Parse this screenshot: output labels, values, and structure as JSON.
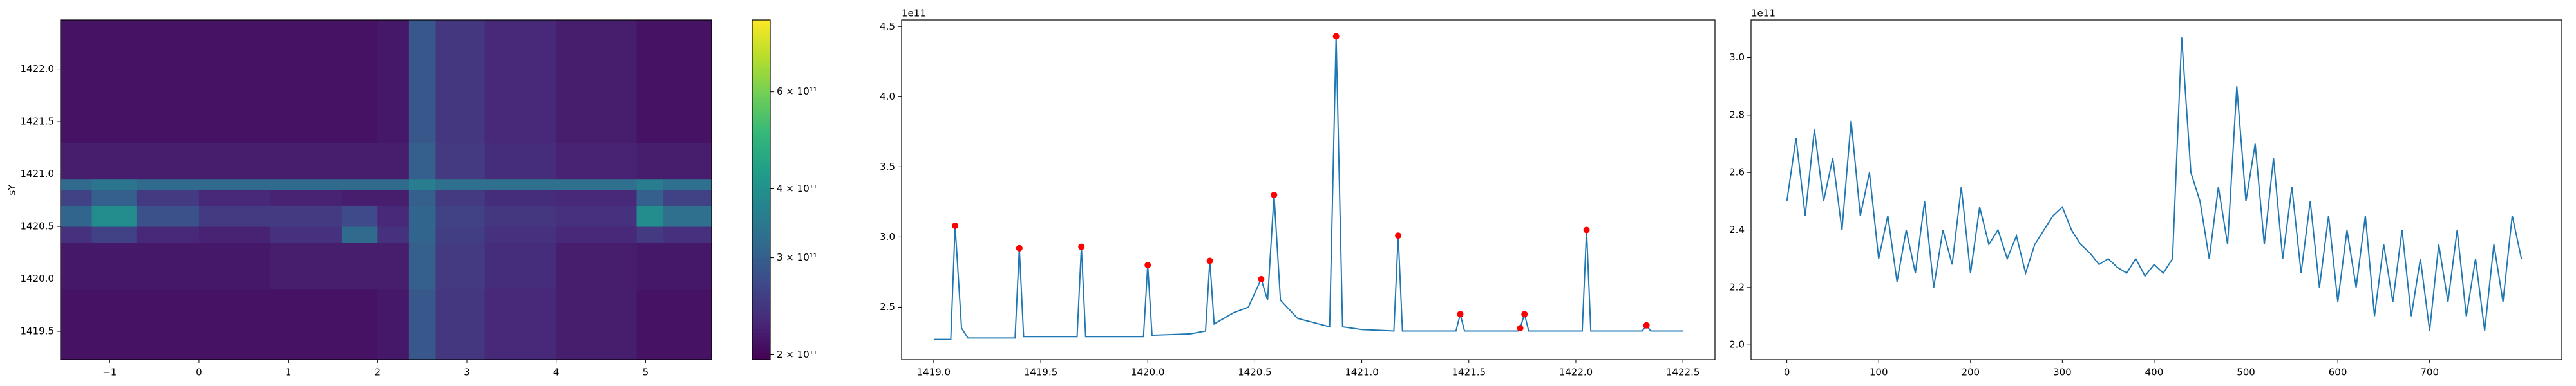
{
  "chart_data": [
    {
      "type": "heatmap",
      "ylabel": "sY",
      "colormap": "viridis",
      "cscale": "log",
      "xlim": [
        -1.55,
        5.74
      ],
      "ylim": [
        1419.23,
        1422.47
      ],
      "xticks": [
        {
          "value": -1,
          "label": "−1"
        },
        0,
        1,
        2,
        3,
        4,
        5
      ],
      "yticks": [
        {
          "value": 1419.5,
          "label": "1419.5"
        },
        {
          "value": 1420.0,
          "label": "1420.0"
        },
        {
          "value": 1420.5,
          "label": "1420.5"
        },
        {
          "value": 1421.0,
          "label": "1421.0"
        },
        {
          "value": 1421.5,
          "label": "1421.5"
        },
        {
          "value": 1422.0,
          "label": "1422.0"
        }
      ],
      "clim": [
        196000000000.0,
        810000000000.0
      ],
      "cticks": [
        {
          "value": 200000000000.0,
          "label": "2 × 10¹¹"
        },
        {
          "value": 300000000000.0,
          "label": "3 × 10¹¹"
        },
        {
          "value": 400000000000.0,
          "label": "4 × 10¹¹"
        },
        {
          "value": 600000000000.0,
          "label": "6 × 10¹¹"
        }
      ],
      "xedges": [
        -1.55,
        -1.2,
        -0.7,
        0,
        0.8,
        1.6,
        2.0,
        2.35,
        2.65,
        3.2,
        4.0,
        4.9,
        5.2,
        5.74
      ],
      "yedges": [
        1419.23,
        1419.9,
        1420.35,
        1420.5,
        1420.7,
        1420.85,
        1420.95,
        1421.3,
        1422.47
      ],
      "z": [
        [
          210000000000.0,
          210000000000.0,
          210000000000.0,
          210000000000.0,
          210000000000.0,
          210000000000.0,
          215000000000.0,
          290000000000.0,
          245000000000.0,
          230000000000.0,
          220000000000.0,
          210000000000.0,
          210000000000.0
        ],
        [
          215000000000.0,
          215000000000.0,
          215000000000.0,
          215000000000.0,
          220000000000.0,
          220000000000.0,
          220000000000.0,
          300000000000.0,
          250000000000.0,
          235000000000.0,
          220000000000.0,
          215000000000.0,
          215000000000.0
        ],
        [
          240000000000.0,
          260000000000.0,
          230000000000.0,
          225000000000.0,
          240000000000.0,
          320000000000.0,
          240000000000.0,
          310000000000.0,
          255000000000.0,
          240000000000.0,
          230000000000.0,
          250000000000.0,
          240000000000.0
        ],
        [
          310000000000.0,
          390000000000.0,
          280000000000.0,
          250000000000.0,
          250000000000.0,
          270000000000.0,
          230000000000.0,
          310000000000.0,
          260000000000.0,
          245000000000.0,
          240000000000.0,
          390000000000.0,
          330000000000.0
        ],
        [
          260000000000.0,
          300000000000.0,
          250000000000.0,
          230000000000.0,
          225000000000.0,
          220000000000.0,
          220000000000.0,
          300000000000.0,
          250000000000.0,
          235000000000.0,
          230000000000.0,
          300000000000.0,
          260000000000.0
        ],
        [
          320000000000.0,
          340000000000.0,
          320000000000.0,
          320000000000.0,
          320000000000.0,
          320000000000.0,
          320000000000.0,
          360000000000.0,
          330000000000.0,
          330000000000.0,
          330000000000.0,
          360000000000.0,
          330000000000.0
        ],
        [
          220000000000.0,
          220000000000.0,
          220000000000.0,
          220000000000.0,
          220000000000.0,
          220000000000.0,
          220000000000.0,
          300000000000.0,
          250000000000.0,
          235000000000.0,
          225000000000.0,
          220000000000.0,
          220000000000.0
        ],
        [
          210000000000.0,
          210000000000.0,
          210000000000.0,
          210000000000.0,
          210000000000.0,
          210000000000.0,
          215000000000.0,
          290000000000.0,
          245000000000.0,
          230000000000.0,
          220000000000.0,
          210000000000.0,
          210000000000.0
        ]
      ]
    },
    {
      "type": "line",
      "offset_label": "1e11",
      "xlim": [
        1418.85,
        1422.65
      ],
      "ylim": [
        2.126,
        4.547
      ],
      "xticks": [
        {
          "value": 1419,
          "label": "1419.0"
        },
        1419.5,
        {
          "value": 1420,
          "label": "1420.0"
        },
        1420.5,
        {
          "value": 1421,
          "label": "1421.0"
        },
        1421.5,
        {
          "value": 1422,
          "label": "1422.0"
        },
        1422.5
      ],
      "yticks": [
        2.5,
        {
          "value": 3,
          "label": "3.0"
        },
        3.5,
        {
          "value": 4,
          "label": "4.0"
        },
        4.5
      ],
      "x": [
        1419.0,
        1419.08,
        1419.1,
        1419.13,
        1419.16,
        1419.38,
        1419.4,
        1419.42,
        1419.67,
        1419.69,
        1419.71,
        1419.98,
        1420.0,
        1420.02,
        1420.2,
        1420.27,
        1420.29,
        1420.31,
        1420.4,
        1420.47,
        1420.53,
        1420.56,
        1420.59,
        1420.62,
        1420.7,
        1420.85,
        1420.88,
        1420.91,
        1421.0,
        1421.15,
        1421.17,
        1421.19,
        1421.44,
        1421.46,
        1421.48,
        1421.73,
        1421.74,
        1421.76,
        1421.78,
        1422.03,
        1422.05,
        1422.07,
        1422.31,
        1422.33,
        1422.35,
        1422.5
      ],
      "series": [
        {
          "color": "#1f77b4",
          "values": [
            2.27,
            2.27,
            3.08,
            2.35,
            2.28,
            2.28,
            2.92,
            2.29,
            2.29,
            2.93,
            2.29,
            2.29,
            2.8,
            2.3,
            2.31,
            2.33,
            2.83,
            2.38,
            2.46,
            2.5,
            2.7,
            2.55,
            3.3,
            2.55,
            2.42,
            2.36,
            4.43,
            2.36,
            2.34,
            2.33,
            3.01,
            2.33,
            2.33,
            2.45,
            2.33,
            2.33,
            2.35,
            2.45,
            2.33,
            2.33,
            3.05,
            2.33,
            2.33,
            2.37,
            2.33,
            2.33
          ]
        }
      ],
      "markers": {
        "color": "#ff0000",
        "x": [
          1419.1,
          1419.4,
          1419.69,
          1420.0,
          1420.29,
          1420.53,
          1420.59,
          1420.88,
          1421.17,
          1421.46,
          1421.74,
          1421.76,
          1422.05,
          1422.33
        ],
        "values": [
          3.08,
          2.92,
          2.93,
          2.8,
          2.83,
          2.7,
          3.3,
          4.43,
          3.01,
          2.45,
          2.35,
          2.45,
          3.05,
          2.37
        ]
      }
    },
    {
      "type": "line",
      "offset_label": "1e11",
      "xlim": [
        -39,
        844
      ],
      "ylim": [
        1.949,
        3.131
      ],
      "xticks": [
        0,
        100,
        200,
        300,
        400,
        500,
        600,
        700
      ],
      "yticks": [
        {
          "value": 2,
          "label": "2.0"
        },
        2.2,
        2.4,
        2.6,
        2.8,
        {
          "value": 3,
          "label": "3.0"
        }
      ],
      "x": [
        0,
        10,
        20,
        30,
        40,
        50,
        60,
        70,
        80,
        90,
        100,
        110,
        120,
        130,
        140,
        150,
        160,
        170,
        180,
        190,
        200,
        210,
        220,
        230,
        240,
        250,
        260,
        270,
        280,
        290,
        300,
        310,
        320,
        330,
        340,
        350,
        360,
        370,
        380,
        390,
        400,
        410,
        420,
        430,
        440,
        450,
        460,
        470,
        480,
        490,
        500,
        510,
        520,
        530,
        540,
        550,
        560,
        570,
        580,
        590,
        600,
        610,
        620,
        630,
        640,
        650,
        660,
        670,
        680,
        690,
        700,
        710,
        720,
        730,
        740,
        750,
        760,
        770,
        780,
        790,
        800
      ],
      "series": [
        {
          "color": "#1f77b4",
          "values": [
            2.5,
            2.72,
            2.45,
            2.75,
            2.5,
            2.65,
            2.4,
            2.78,
            2.45,
            2.6,
            2.3,
            2.45,
            2.22,
            2.4,
            2.25,
            2.5,
            2.2,
            2.4,
            2.28,
            2.55,
            2.25,
            2.48,
            2.35,
            2.4,
            2.3,
            2.38,
            2.25,
            2.35,
            2.4,
            2.45,
            2.48,
            2.4,
            2.35,
            2.32,
            2.28,
            2.3,
            2.27,
            2.25,
            2.3,
            2.24,
            2.28,
            2.25,
            2.3,
            3.07,
            2.6,
            2.5,
            2.3,
            2.55,
            2.35,
            2.9,
            2.5,
            2.7,
            2.35,
            2.65,
            2.3,
            2.55,
            2.25,
            2.5,
            2.2,
            2.45,
            2.15,
            2.4,
            2.2,
            2.45,
            2.1,
            2.35,
            2.15,
            2.4,
            2.1,
            2.3,
            2.05,
            2.35,
            2.15,
            2.4,
            2.1,
            2.3,
            2.05,
            2.35,
            2.15,
            2.45,
            2.3
          ]
        }
      ]
    }
  ]
}
